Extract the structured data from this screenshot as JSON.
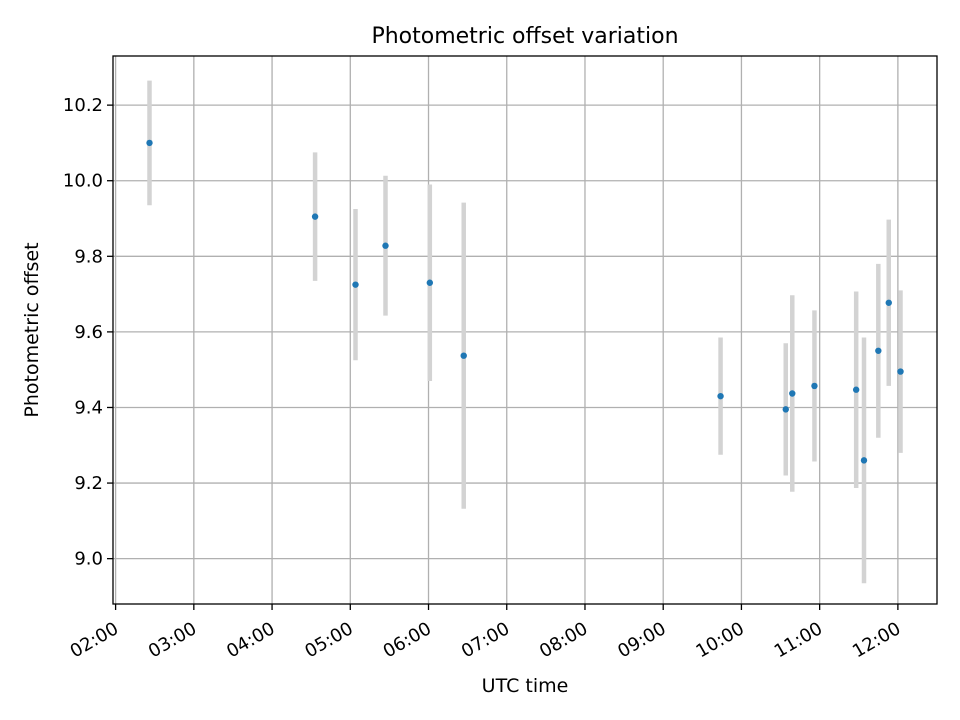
{
  "chart_data": {
    "type": "scatter",
    "title": "Photometric offset variation",
    "xlabel": "UTC time",
    "ylabel": "Photometric offset",
    "x_is_time": true,
    "xlim": [
      "01:58",
      "12:30"
    ],
    "ylim": [
      8.88,
      10.33
    ],
    "x_ticks": [
      "02:00",
      "03:00",
      "04:00",
      "05:00",
      "06:00",
      "07:00",
      "08:00",
      "09:00",
      "10:00",
      "11:00",
      "12:00"
    ],
    "y_ticks": [
      "9.0",
      "9.2",
      "9.4",
      "9.6",
      "9.8",
      "10.0",
      "10.2"
    ],
    "grid": true,
    "marker_color": "#1f77b4",
    "errorbar_color": "#d3d3d3",
    "points": [
      {
        "x": "02:26",
        "y": 10.1,
        "err": 0.165
      },
      {
        "x": "04:33",
        "y": 9.905,
        "err": 0.17
      },
      {
        "x": "05:04",
        "y": 9.725,
        "err": 0.2
      },
      {
        "x": "05:27",
        "y": 9.828,
        "err": 0.185
      },
      {
        "x": "06:01",
        "y": 9.73,
        "err": 0.26
      },
      {
        "x": "06:27",
        "y": 9.537,
        "err": 0.405
      },
      {
        "x": "09:44",
        "y": 9.43,
        "err": 0.155
      },
      {
        "x": "10:34",
        "y": 9.395,
        "err": 0.175
      },
      {
        "x": "10:39",
        "y": 9.437,
        "err": 0.26
      },
      {
        "x": "10:56",
        "y": 9.457,
        "err": 0.2
      },
      {
        "x": "11:28",
        "y": 9.447,
        "err": 0.26
      },
      {
        "x": "11:34",
        "y": 9.26,
        "err": 0.325
      },
      {
        "x": "11:45",
        "y": 9.55,
        "err": 0.23
      },
      {
        "x": "11:53",
        "y": 9.677,
        "err": 0.22
      },
      {
        "x": "12:02",
        "y": 9.495,
        "err": 0.215
      }
    ]
  }
}
